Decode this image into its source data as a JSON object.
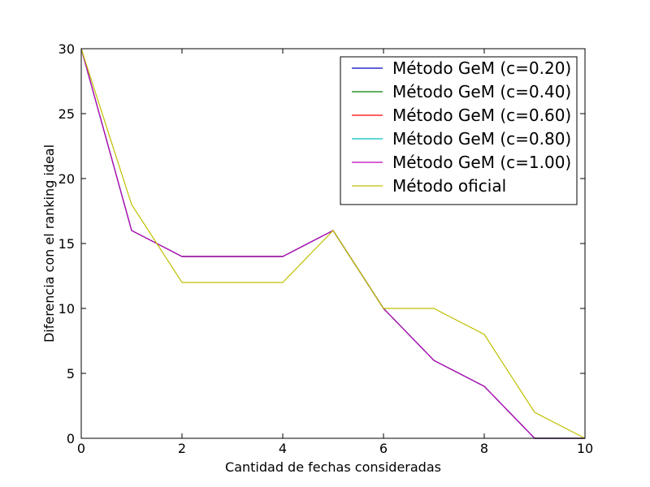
{
  "chart_data": {
    "type": "line",
    "title": "",
    "xlabel": "Cantidad de fechas consideradas",
    "ylabel": "Diferencia con el ranking ideal",
    "xlim": [
      0,
      10
    ],
    "ylim": [
      0,
      30
    ],
    "x_ticks": [
      0,
      2,
      4,
      6,
      8,
      10
    ],
    "y_ticks": [
      0,
      5,
      10,
      15,
      20,
      25,
      30
    ],
    "grid": false,
    "legend_position": "top-right",
    "x": [
      0,
      1,
      2,
      3,
      4,
      5,
      6,
      7,
      8,
      9,
      10
    ],
    "series": [
      {
        "name": "Método GeM (c=0.20)",
        "color": "#0000bf",
        "values": [
          30,
          16,
          14,
          14,
          14,
          16,
          10,
          6,
          4,
          0,
          0
        ]
      },
      {
        "name": "Método GeM (c=0.40)",
        "color": "#008000",
        "values": [
          30,
          16,
          14,
          14,
          14,
          16,
          10,
          6,
          4,
          0,
          0
        ]
      },
      {
        "name": "Método GeM (c=0.60)",
        "color": "#ff0000",
        "values": [
          30,
          16,
          14,
          14,
          14,
          16,
          10,
          6,
          4,
          0,
          0
        ]
      },
      {
        "name": "Método GeM (c=0.80)",
        "color": "#00bfbf",
        "values": [
          30,
          16,
          14,
          14,
          14,
          16,
          10,
          6,
          4,
          0,
          0
        ]
      },
      {
        "name": "Método GeM (c=1.00)",
        "color": "#bf00bf",
        "values": [
          30,
          16,
          14,
          14,
          14,
          16,
          10,
          6,
          4,
          0,
          0
        ]
      },
      {
        "name": "Método oficial",
        "color": "#bfbf00",
        "values": [
          30,
          18,
          12,
          12,
          12,
          16,
          10,
          10,
          8,
          2,
          0
        ]
      }
    ]
  }
}
